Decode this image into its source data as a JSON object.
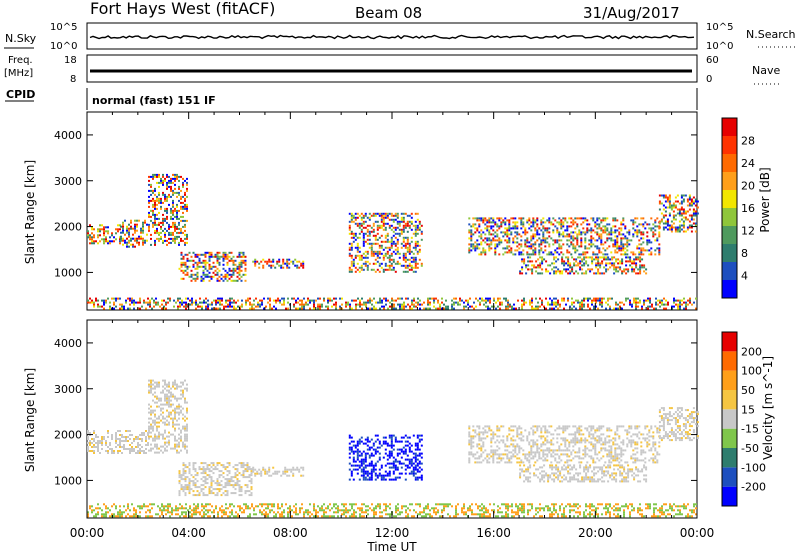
{
  "header": {
    "title": "Fort Hays West (fitACF)",
    "beam": "Beam 08",
    "date": "31/Aug/2017"
  },
  "top_panels": {
    "nsky_label": "N.Sky",
    "nsky_ticks": [
      "10^5",
      "10^0"
    ],
    "nsearch_ticks": [
      "10^5",
      "10^0"
    ],
    "nsearch_label": "N.Search",
    "freq_label": "Freq.",
    "freq_unit": "[MHz]",
    "freq_ticks": [
      "18",
      "8"
    ],
    "nave_ticks": [
      "60",
      "0"
    ],
    "nave_label": "Nave",
    "cpid_label": "CPID",
    "cpid_text": "normal (fast) 151 IF"
  },
  "chart_data": [
    {
      "type": "heatmap",
      "name": "power",
      "ylabel": "Slant Range [km]",
      "yticks": [
        "4000",
        "3000",
        "2000",
        "1000"
      ],
      "ylim": [
        180,
        4500
      ],
      "colorbar_label": "Power [dB]",
      "colorbar_ticks": [
        "28",
        "24",
        "20",
        "16",
        "12",
        "8",
        "4"
      ],
      "colorbar_colors": [
        "#0000ff",
        "#1d4fbf",
        "#2e7d6e",
        "#4f9a5e",
        "#8fc63b",
        "#f2e600",
        "#ff9f1a",
        "#ff6a00",
        "#ff3300",
        "#e60000"
      ],
      "echo_regions": [
        {
          "t0": 0.0,
          "t1": 1.3,
          "r0": 1650,
          "r1": 2050
        },
        {
          "t0": 1.3,
          "t1": 2.4,
          "r0": 1550,
          "r1": 2150
        },
        {
          "t0": 2.4,
          "t1": 3.9,
          "r0": 1600,
          "r1": 3150
        },
        {
          "t0": 3.6,
          "t1": 6.2,
          "r0": 800,
          "r1": 1450
        },
        {
          "t0": 6.5,
          "t1": 8.5,
          "r0": 1100,
          "r1": 1300
        },
        {
          "t0": 10.3,
          "t1": 13.2,
          "r0": 1000,
          "r1": 2300
        },
        {
          "t0": 15.0,
          "t1": 22.5,
          "r0": 1400,
          "r1": 2200
        },
        {
          "t0": 17.0,
          "t1": 22.0,
          "r0": 1000,
          "r1": 1350
        },
        {
          "t0": 22.5,
          "t1": 24.0,
          "r0": 1900,
          "r1": 2700
        },
        {
          "t0": 0.0,
          "t1": 24.0,
          "r0": 200,
          "r1": 450
        }
      ]
    },
    {
      "type": "heatmap",
      "name": "velocity",
      "ylabel": "Slant Range [km]",
      "yticks": [
        "4000",
        "3000",
        "2000",
        "1000"
      ],
      "ylim": [
        180,
        4500
      ],
      "xlabel": "Time UT",
      "xticks": [
        "00:00",
        "04:00",
        "08:00",
        "12:00",
        "16:00",
        "20:00",
        "00:00"
      ],
      "colorbar_label": "Velocity [m s^-1]",
      "colorbar_ticks": [
        "200",
        "100",
        "50",
        "15",
        "-15",
        "-50",
        "-100",
        "-200"
      ],
      "colorbar_colors": [
        "#0000ff",
        "#1d4fbf",
        "#2e7d6e",
        "#7fc64b",
        "#c8c8c8",
        "#f5c542",
        "#ff9f1a",
        "#ff6a00",
        "#e60000"
      ],
      "echo_regions": [
        {
          "t0": 0.0,
          "t1": 2.4,
          "r0": 1600,
          "r1": 2100
        },
        {
          "t0": 2.4,
          "t1": 3.9,
          "r0": 1600,
          "r1": 3200
        },
        {
          "t0": 3.6,
          "t1": 6.5,
          "r0": 700,
          "r1": 1400
        },
        {
          "t0": 6.5,
          "t1": 8.5,
          "r0": 1100,
          "r1": 1300
        },
        {
          "t0": 10.3,
          "t1": 13.2,
          "r0": 1000,
          "r1": 2000
        },
        {
          "t0": 15.0,
          "t1": 22.5,
          "r0": 1400,
          "r1": 2200
        },
        {
          "t0": 17.0,
          "t1": 22.0,
          "r0": 1000,
          "r1": 1350
        },
        {
          "t0": 22.5,
          "t1": 24.0,
          "r0": 1900,
          "r1": 2600
        },
        {
          "t0": 0.0,
          "t1": 24.0,
          "r0": 200,
          "r1": 500
        }
      ]
    }
  ]
}
